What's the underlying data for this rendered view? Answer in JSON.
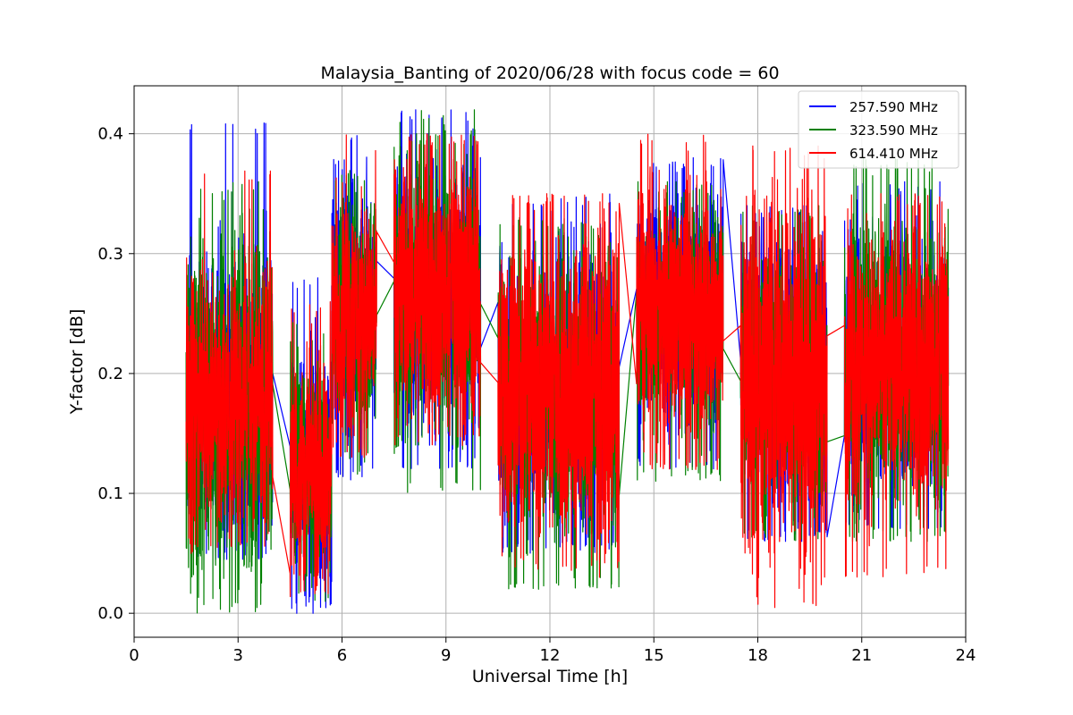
{
  "chart_data": {
    "type": "line",
    "title": "Malaysia_Banting of 2020/06/28 with focus code = 60",
    "xlabel": "Universal Time [h]",
    "ylabel": "Y-factor [dB]",
    "xlim": [
      0,
      24
    ],
    "ylim": [
      -0.02,
      0.44
    ],
    "xticks": [
      0,
      3,
      6,
      9,
      12,
      15,
      18,
      21,
      24
    ],
    "yticks": [
      0.0,
      0.1,
      0.2,
      0.3,
      0.4
    ],
    "xtick_labels": [
      "0",
      "3",
      "6",
      "9",
      "12",
      "15",
      "18",
      "21",
      "24"
    ],
    "ytick_labels": [
      "0.0",
      "0.1",
      "0.2",
      "0.3",
      "0.4"
    ],
    "grid": true,
    "legend_position": "top-right",
    "series": [
      {
        "name": "257.590 MHz",
        "color": "#0000ff",
        "segments": [
          {
            "x_start": 1.5,
            "x_end": 4.0,
            "center": 0.185,
            "min": 0.045,
            "max": 0.41
          },
          {
            "x_start": 4.5,
            "x_end": 5.7,
            "center": 0.12,
            "min": 0.0,
            "max": 0.28
          },
          {
            "x_start": 5.7,
            "x_end": 7.0,
            "center": 0.26,
            "min": 0.11,
            "max": 0.4
          },
          {
            "x_start": 7.5,
            "x_end": 10.0,
            "center": 0.27,
            "min": 0.12,
            "max": 0.42
          },
          {
            "x_start": 10.5,
            "x_end": 14.0,
            "center": 0.19,
            "min": 0.05,
            "max": 0.35
          },
          {
            "x_start": 14.5,
            "x_end": 17.0,
            "center": 0.26,
            "min": 0.12,
            "max": 0.38
          },
          {
            "x_start": 17.5,
            "x_end": 20.0,
            "center": 0.2,
            "min": 0.06,
            "max": 0.34
          },
          {
            "x_start": 20.5,
            "x_end": 23.5,
            "center": 0.21,
            "min": 0.07,
            "max": 0.36
          }
        ]
      },
      {
        "name": "323.590 MHz",
        "color": "#008000",
        "segments": [
          {
            "x_start": 1.5,
            "x_end": 4.0,
            "center": 0.18,
            "min": 0.0,
            "max": 0.36
          },
          {
            "x_start": 4.5,
            "x_end": 5.7,
            "center": 0.12,
            "min": 0.01,
            "max": 0.25
          },
          {
            "x_start": 5.7,
            "x_end": 7.0,
            "center": 0.25,
            "min": 0.11,
            "max": 0.37
          },
          {
            "x_start": 7.5,
            "x_end": 10.0,
            "center": 0.27,
            "min": 0.1,
            "max": 0.42
          },
          {
            "x_start": 10.5,
            "x_end": 14.0,
            "center": 0.19,
            "min": 0.02,
            "max": 0.33
          },
          {
            "x_start": 14.5,
            "x_end": 17.0,
            "center": 0.25,
            "min": 0.11,
            "max": 0.36
          },
          {
            "x_start": 17.5,
            "x_end": 20.0,
            "center": 0.2,
            "min": 0.06,
            "max": 0.34
          },
          {
            "x_start": 20.5,
            "x_end": 23.5,
            "center": 0.21,
            "min": 0.06,
            "max": 0.38
          }
        ]
      },
      {
        "name": "614.410 MHz",
        "color": "#ff0000",
        "segments": [
          {
            "x_start": 1.5,
            "x_end": 4.0,
            "center": 0.18,
            "min": 0.05,
            "max": 0.37
          },
          {
            "x_start": 4.5,
            "x_end": 5.7,
            "center": 0.12,
            "min": 0.01,
            "max": 0.26
          },
          {
            "x_start": 5.7,
            "x_end": 7.0,
            "center": 0.25,
            "min": 0.13,
            "max": 0.4
          },
          {
            "x_start": 7.5,
            "x_end": 10.0,
            "center": 0.27,
            "min": 0.14,
            "max": 0.4
          },
          {
            "x_start": 10.5,
            "x_end": 14.0,
            "center": 0.19,
            "min": 0.03,
            "max": 0.35
          },
          {
            "x_start": 14.5,
            "x_end": 17.0,
            "center": 0.25,
            "min": 0.12,
            "max": 0.4
          },
          {
            "x_start": 17.5,
            "x_end": 20.0,
            "center": 0.2,
            "min": 0.0,
            "max": 0.39
          },
          {
            "x_start": 20.5,
            "x_end": 23.5,
            "center": 0.21,
            "min": 0.03,
            "max": 0.35
          }
        ]
      }
    ]
  }
}
